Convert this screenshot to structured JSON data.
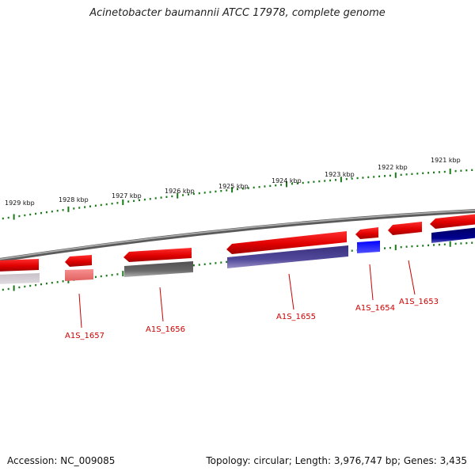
{
  "title": "Acinetobacter baumannii ATCC 17978, complete genome",
  "footer": {
    "accession": "Accession: NC_009085",
    "summary": "Topology: circular; Length: 3,976,747 bp; Genes: 3,435"
  },
  "colors": {
    "tick": "#1a7a1a",
    "backbone": "#8a8a8a",
    "forward_gene": "#e00000",
    "label": "#cc0000"
  },
  "kbp_labels": [
    "1929 kbp",
    "1928 kbp",
    "1927 kbp",
    "1926 kbp",
    "1925 kbp",
    "1924 kbp",
    "1923 kbp",
    "1922 kbp",
    "1921 kbp"
  ],
  "genes": [
    {
      "name": "A1S_1657",
      "color": "#f07070"
    },
    {
      "name": "A1S_1656",
      "color": "#606060"
    },
    {
      "name": "A1S_1655",
      "color": "#4a4090"
    },
    {
      "name": "A1S_1654",
      "color": "#0000ff"
    },
    {
      "name": "A1S_1653",
      "color": "#000080"
    }
  ]
}
